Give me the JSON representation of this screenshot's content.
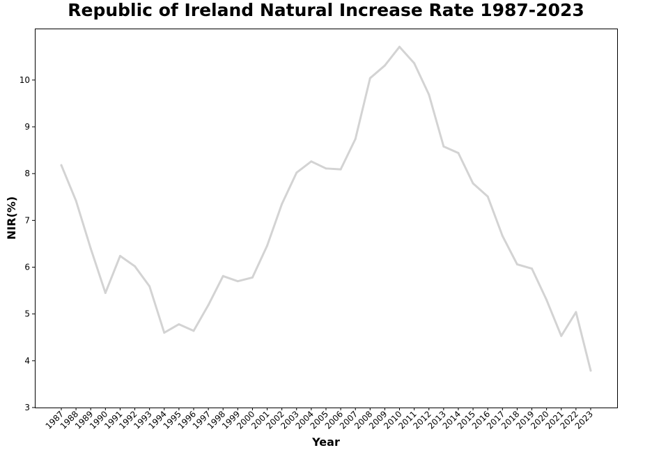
{
  "chart_data": {
    "type": "line",
    "title": "Republic of Ireland Natural Increase Rate 1987-2023",
    "xlabel": "Year",
    "ylabel": "NIR(%)",
    "x": [
      "1987",
      "1988",
      "1989",
      "1990",
      "1991",
      "1992",
      "1993",
      "1994",
      "1995",
      "1996",
      "1997",
      "1998",
      "1999",
      "2000",
      "2001",
      "2002",
      "2003",
      "2004",
      "2005",
      "2006",
      "2007",
      "2008",
      "2009",
      "2010",
      "2011",
      "2012",
      "2013",
      "2014",
      "2015",
      "2016",
      "2017",
      "2018",
      "2019",
      "2020",
      "2021",
      "2022",
      "2023"
    ],
    "series": [
      {
        "color": "#d3d3d3",
        "values": [
          8.18,
          7.42,
          6.4,
          5.45,
          6.24,
          6.02,
          5.59,
          4.6,
          4.78,
          4.64,
          5.19,
          5.81,
          5.7,
          5.78,
          6.46,
          7.35,
          8.02,
          8.26,
          8.11,
          8.09,
          8.74,
          10.04,
          10.31,
          10.71,
          10.36,
          9.69,
          8.58,
          8.44,
          7.79,
          7.51,
          6.67,
          6.06,
          5.97,
          5.3,
          4.53,
          5.04,
          3.79
        ]
      }
    ],
    "ylim": [
      3,
      11.1
    ],
    "yticks": [
      "3",
      "4",
      "5",
      "6",
      "7",
      "8",
      "9",
      "10"
    ],
    "grid": false,
    "legend": "none"
  }
}
